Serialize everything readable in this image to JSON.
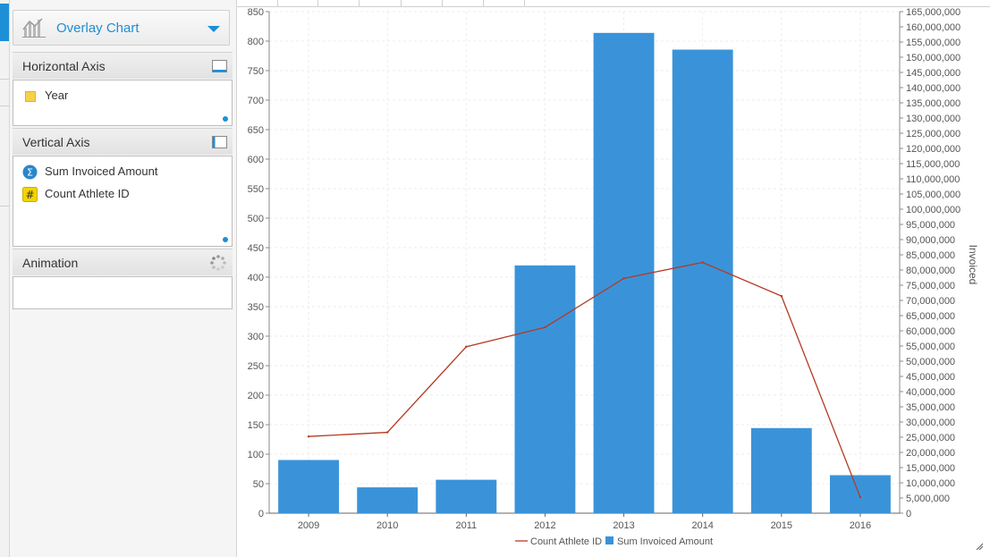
{
  "panel": {
    "chart_type": {
      "label": "Overlay Chart",
      "icon": "bar-chart-icon"
    },
    "horizontal_axis": {
      "title": "Horizontal Axis",
      "fields": [
        {
          "label": "Year",
          "icon": "dimension-icon"
        }
      ]
    },
    "vertical_axis": {
      "title": "Vertical Axis",
      "fields": [
        {
          "label": "Sum Invoiced Amount",
          "icon": "sigma-icon"
        },
        {
          "label": "Count Athlete ID",
          "icon": "hash-icon"
        }
      ]
    },
    "animation": {
      "title": "Animation",
      "icon": "spinner-icon"
    }
  },
  "colors": {
    "accent": "#1d8fd6",
    "bar": "#3a93d9",
    "line": "#b53a22"
  },
  "chart_data": {
    "type": "bar",
    "categories": [
      "2009",
      "2010",
      "2011",
      "2012",
      "2013",
      "2014",
      "2015",
      "2016"
    ],
    "series": [
      {
        "name": "Sum Invoiced Amount",
        "type": "bar",
        "axis": "right",
        "values": [
          17500000,
          8500000,
          11000000,
          81500000,
          158000000,
          152500000,
          28000000,
          12500000
        ]
      },
      {
        "name": "Count Athlete ID",
        "type": "line",
        "axis": "left",
        "values": [
          130,
          137,
          282,
          315,
          398,
          425,
          368,
          27
        ]
      }
    ],
    "left_axis": {
      "min": 0,
      "max": 850,
      "step": 50,
      "ticks": [
        "0",
        "50",
        "100",
        "150",
        "200",
        "250",
        "300",
        "350",
        "400",
        "450",
        "500",
        "550",
        "600",
        "650",
        "700",
        "750",
        "800",
        "850"
      ]
    },
    "right_axis": {
      "min": 0,
      "max": 165000000,
      "step": 5000000,
      "label": "Invoiced",
      "ticks": [
        "0",
        "5,000,000",
        "10,000,000",
        "15,000,000",
        "20,000,000",
        "25,000,000",
        "30,000,000",
        "35,000,000",
        "40,000,000",
        "45,000,000",
        "50,000,000",
        "55,000,000",
        "60,000,000",
        "65,000,000",
        "70,000,000",
        "75,000,000",
        "80,000,000",
        "85,000,000",
        "90,000,000",
        "95,000,000",
        "100,000,000",
        "105,000,000",
        "110,000,000",
        "115,000,000",
        "120,000,000",
        "125,000,000",
        "130,000,000",
        "135,000,000",
        "140,000,000",
        "145,000,000",
        "150,000,000",
        "155,000,000",
        "160,000,000",
        "165,000,000"
      ]
    },
    "grid": true,
    "legend": {
      "position": "bottom",
      "entries": [
        "Count Athlete ID",
        "Sum Invoiced Amount"
      ]
    }
  }
}
